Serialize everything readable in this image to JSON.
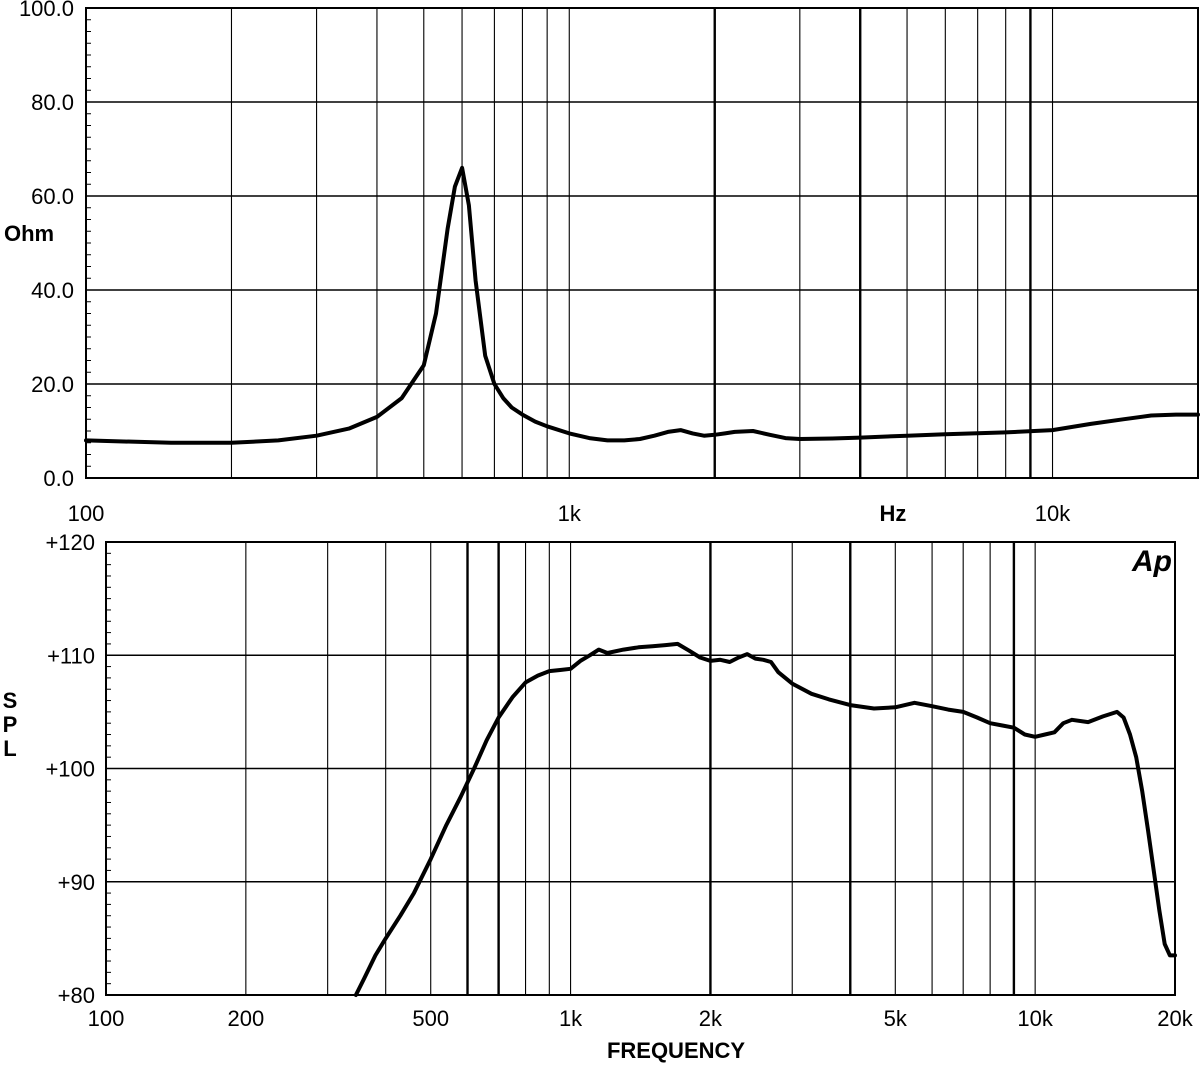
{
  "chart_data": [
    {
      "type": "line",
      "ylabel": "Ohm",
      "xlabel": "Hz",
      "x_scale": "log",
      "xlim": [
        100,
        20000
      ],
      "ylim": [
        0,
        100
      ],
      "yticks": [
        {
          "value": 0,
          "label": "0.0"
        },
        {
          "value": 20,
          "label": "20.0"
        },
        {
          "value": 40,
          "label": "40.0"
        },
        {
          "value": 60,
          "label": "60.0"
        },
        {
          "value": 80,
          "label": "80.0"
        },
        {
          "value": 100,
          "label": "100.0"
        }
      ],
      "xticks": [
        {
          "value": 100,
          "label": "100"
        },
        {
          "value": 1000,
          "label": "1k"
        },
        {
          "value": 10000,
          "label": "10k"
        }
      ],
      "grid": true,
      "series": [
        {
          "x": [
            100,
            150,
            200,
            250,
            300,
            350,
            400,
            450,
            500,
            530,
            560,
            580,
            600,
            620,
            640,
            670,
            700,
            730,
            760,
            800,
            850,
            900,
            1000,
            1100,
            1200,
            1300,
            1400,
            1500,
            1600,
            1700,
            1800,
            1900,
            2000,
            2100,
            2200,
            2400,
            2600,
            2800,
            3000,
            3500,
            4000,
            5000,
            6000,
            8000,
            10000,
            12000,
            14000,
            16000,
            18000,
            20000
          ],
          "y": [
            8,
            7.5,
            7.5,
            8,
            9,
            10.5,
            13,
            17,
            24,
            35,
            53,
            62,
            66,
            58,
            42,
            26,
            20,
            17,
            15,
            13.5,
            12,
            11,
            9.5,
            8.5,
            8,
            8,
            8.3,
            9,
            9.8,
            10.2,
            9.5,
            9,
            9.2,
            9.5,
            9.8,
            10,
            9.2,
            8.5,
            8.3,
            8.4,
            8.6,
            9,
            9.3,
            9.7,
            10.2,
            11.5,
            12.5,
            13.3,
            13.5,
            13.5
          ]
        }
      ]
    },
    {
      "type": "line",
      "ylabel": "SPL",
      "xlabel": "FREQUENCY",
      "x_scale": "log",
      "xlim": [
        100,
        20000
      ],
      "ylim": [
        80,
        120
      ],
      "yticks": [
        {
          "value": 80,
          "label": "+80"
        },
        {
          "value": 90,
          "label": "+90"
        },
        {
          "value": 100,
          "label": "+100"
        },
        {
          "value": 110,
          "label": "+110"
        },
        {
          "value": 120,
          "label": "+120"
        }
      ],
      "xticks": [
        {
          "value": 100,
          "label": "100"
        },
        {
          "value": 200,
          "label": "200"
        },
        {
          "value": 500,
          "label": "500"
        },
        {
          "value": 1000,
          "label": "1k"
        },
        {
          "value": 2000,
          "label": "2k"
        },
        {
          "value": 5000,
          "label": "5k"
        },
        {
          "value": 10000,
          "label": "10k"
        },
        {
          "value": 20000,
          "label": "20k"
        }
      ],
      "grid": true,
      "logo_text": "Ap",
      "series": [
        {
          "x": [
            345,
            360,
            380,
            400,
            430,
            460,
            500,
            540,
            580,
            620,
            660,
            700,
            750,
            800,
            850,
            900,
            950,
            1000,
            1050,
            1100,
            1150,
            1200,
            1300,
            1400,
            1500,
            1600,
            1700,
            1800,
            1900,
            2000,
            2100,
            2200,
            2300,
            2400,
            2500,
            2600,
            2700,
            2800,
            3000,
            3300,
            3600,
            4000,
            4500,
            5000,
            5500,
            6000,
            6500,
            7000,
            7500,
            8000,
            8500,
            9000,
            9500,
            10000,
            10500,
            11000,
            11500,
            12000,
            13000,
            14000,
            15000,
            15500,
            16000,
            16500,
            17000,
            17500,
            18000,
            18500,
            19000,
            19500,
            20000
          ],
          "y": [
            80,
            81.5,
            83.5,
            85,
            87,
            89,
            92,
            95,
            97.5,
            100,
            102.5,
            104.5,
            106.3,
            107.6,
            108.2,
            108.6,
            108.7,
            108.8,
            109.5,
            110,
            110.5,
            110.2,
            110.5,
            110.7,
            110.8,
            110.9,
            111,
            110.4,
            109.8,
            109.5,
            109.6,
            109.4,
            109.8,
            110.1,
            109.7,
            109.6,
            109.4,
            108.5,
            107.5,
            106.6,
            106.1,
            105.6,
            105.3,
            105.4,
            105.8,
            105.5,
            105.2,
            105.0,
            104.5,
            104.0,
            103.8,
            103.6,
            103.0,
            102.8,
            103.0,
            103.2,
            104.0,
            104.3,
            104.1,
            104.6,
            105.0,
            104.5,
            103.0,
            101.0,
            98.0,
            94.5,
            91.0,
            87.5,
            84.5,
            83.5,
            83.5
          ]
        }
      ]
    }
  ]
}
